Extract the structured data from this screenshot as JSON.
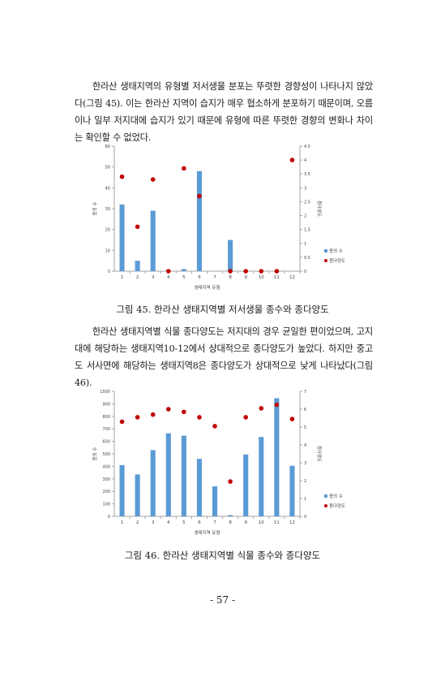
{
  "paragraphs": {
    "p1": "한라산 생태지역의 유형별 저서생물 분포는 뚜렷한 경향성이 나타나지 않았다(그림 45). 이는 한라산 지역이 습지가 매우 협소하게 분포하기 때문이며, 오름이나 일부 저지대에 습지가 있기 때문에 유형에 따른 뚜렷한 경향의 변화나 차이는 확인할 수 없었다.",
    "p2": "한라산 생태지역별 식물 종다양도는 저지대의 경우 균일한 편이었으며, 고지대에 해당하는 생태지역10-12에서 상대적으로 종다양도가 높았다. 하지만 중고도 서사면에 해당하는 생태지역8은 종다양도가 상대적으로 낮게 나타났다(그림 46)."
  },
  "captions": {
    "fig45": "그림 45. 한라산 생태지역별 저서생물 종수와 종다양도",
    "fig46": "그림 46. 한라산 생태지역별 식물 종수와 종다양도"
  },
  "page_number": "- 57 -",
  "colors": {
    "bar": "#5b9bd5",
    "dot": "#c00000",
    "axis": "#a6a6a6"
  },
  "chart_data": [
    {
      "type": "bar",
      "categories": [
        "1",
        "2",
        "3",
        "4",
        "5",
        "6",
        "7",
        "8",
        "9",
        "10",
        "11",
        "12"
      ],
      "series": [
        {
          "name": "종의 수",
          "axis": "left",
          "kind": "bar",
          "values": [
            32,
            5,
            29,
            0,
            1,
            48,
            0,
            15,
            0,
            0,
            0,
            0
          ]
        },
        {
          "name": "종다양도",
          "axis": "right",
          "kind": "dot",
          "values": [
            3.4,
            1.6,
            3.3,
            0,
            3.7,
            2.7,
            null,
            0,
            0,
            0,
            0,
            4.0
          ]
        }
      ],
      "xlabel": "생태지역 유형",
      "ylabel": "종의 수",
      "y2label": "종다양도",
      "ylim": [
        0,
        60
      ],
      "yticks": [
        "0",
        "10",
        "20",
        "30",
        "40",
        "50",
        "60"
      ],
      "y2lim": [
        0,
        4.5
      ],
      "y2ticks": [
        "0",
        "0.5",
        "1",
        "1.5",
        "2",
        "2.5",
        "3",
        "3.5",
        "4",
        "4.5"
      ],
      "legend": "right"
    },
    {
      "type": "bar",
      "categories": [
        "1",
        "2",
        "3",
        "4",
        "5",
        "6",
        "7",
        "8",
        "9",
        "10",
        "11",
        "12"
      ],
      "series": [
        {
          "name": "종의 수",
          "axis": "left",
          "kind": "bar",
          "values": [
            410,
            335,
            530,
            665,
            645,
            460,
            240,
            10,
            495,
            635,
            945,
            405
          ]
        },
        {
          "name": "종다양도",
          "axis": "right",
          "kind": "dot",
          "values": [
            5.3,
            5.55,
            5.7,
            6.0,
            5.85,
            5.55,
            5.05,
            1.95,
            5.55,
            6.05,
            6.25,
            5.45
          ]
        }
      ],
      "xlabel": "생태지역 유형",
      "ylabel": "종의 수",
      "y2label": "종다양도",
      "ylim": [
        0,
        1000
      ],
      "yticks": [
        "0",
        "100",
        "200",
        "300",
        "400",
        "500",
        "600",
        "700",
        "800",
        "900",
        "1000"
      ],
      "y2lim": [
        0,
        7
      ],
      "y2ticks": [
        "0",
        "1",
        "2",
        "3",
        "4",
        "5",
        "6",
        "7"
      ],
      "legend": "right"
    }
  ]
}
